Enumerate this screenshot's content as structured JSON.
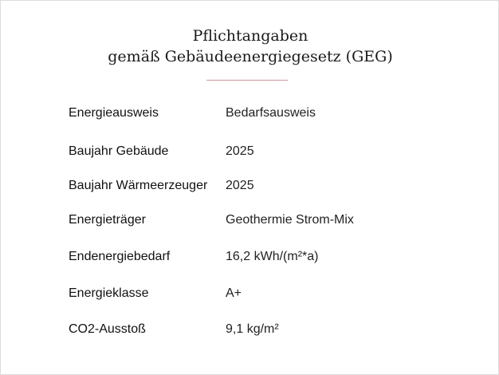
{
  "heading": {
    "line1": "Pflichtangaben",
    "line2": "gemäß Gebäudeenergiegesetz (GEG)",
    "divider_color": "#c99a9e"
  },
  "rows": [
    {
      "label": "Energieausweis",
      "value": "Bedarfsausweis"
    },
    {
      "label": "Baujahr Gebäude",
      "value": "2025"
    },
    {
      "label": "Baujahr Wärmeerzeuger",
      "value": "2025"
    },
    {
      "label": "Energieträger",
      "value": "Geothermie Strom-Mix"
    },
    {
      "label": "Endenergiebedarf",
      "value": "16,2 kWh/(m²*a)"
    },
    {
      "label": "Energieklasse",
      "value": "A+"
    },
    {
      "label": "CO2-Ausstoß",
      "value": "9,1 kg/m²"
    }
  ]
}
